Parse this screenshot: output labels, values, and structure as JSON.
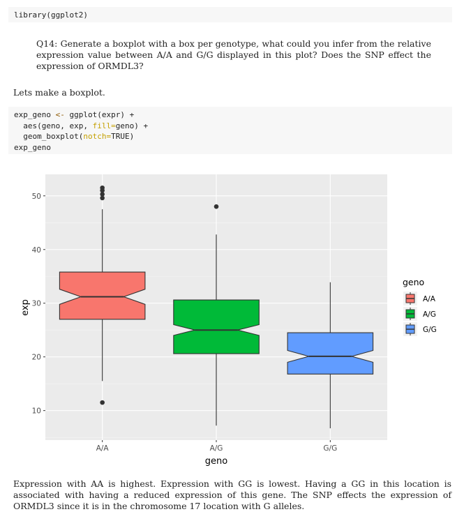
{
  "code1": {
    "lines": [
      "library(ggplot2)"
    ]
  },
  "question": "Q14: Generate a boxplot with a box per genotype, what could you infer from the relative expression value between A/A and G/G displayed in this plot? Does the SNP effect the expression of ORMDL3?",
  "intro": "Lets make a boxplot.",
  "code2": {
    "l1_a": "exp_geno ",
    "l1_op": "<-",
    "l1_b": " ggplot(expr) +",
    "l2_a": "  aes(geno, exp, ",
    "l2_arg": "fill=",
    "l2_b": "geno) +",
    "l3_a": "  geom_boxplot(",
    "l3_arg": "notch=",
    "l3_b": "TRUE)",
    "l4": "exp_geno"
  },
  "chart_data": {
    "type": "boxplot",
    "xlabel": "geno",
    "ylabel": "exp",
    "ylim": [
      4.5,
      54
    ],
    "yticks": [
      10,
      20,
      30,
      40,
      50
    ],
    "grid": true,
    "legend": {
      "title": "geno",
      "position": "right"
    },
    "categories": [
      "A/A",
      "A/G",
      "G/G"
    ],
    "colors": [
      "#F8766D",
      "#00BA38",
      "#619CFF"
    ],
    "boxes": [
      {
        "name": "A/A",
        "min": 15.5,
        "q1": 27,
        "median": 31.2,
        "q3": 35.8,
        "max": 47.5,
        "notch_low": 29.8,
        "notch_high": 32.6,
        "outliers": [
          11.5,
          49.6,
          50.3,
          51.0,
          51.5
        ]
      },
      {
        "name": "A/G",
        "min": 7.2,
        "q1": 20.6,
        "median": 25.0,
        "q3": 30.6,
        "max": 42.8,
        "notch_low": 24.0,
        "notch_high": 26.0,
        "outliers": [
          48.0
        ]
      },
      {
        "name": "G/G",
        "min": 6.7,
        "q1": 16.8,
        "median": 20.1,
        "q3": 24.5,
        "max": 33.9,
        "notch_low": 19.0,
        "notch_high": 21.2,
        "outliers": []
      }
    ]
  },
  "conclusion": "Expression with AA is highest. Expression with GG is lowest. Having a GG in this location is associated with having a reduced expression of this gene. The SNP effects the expression of ORMDL3 since it is in the chromosome 17 location with G alleles."
}
